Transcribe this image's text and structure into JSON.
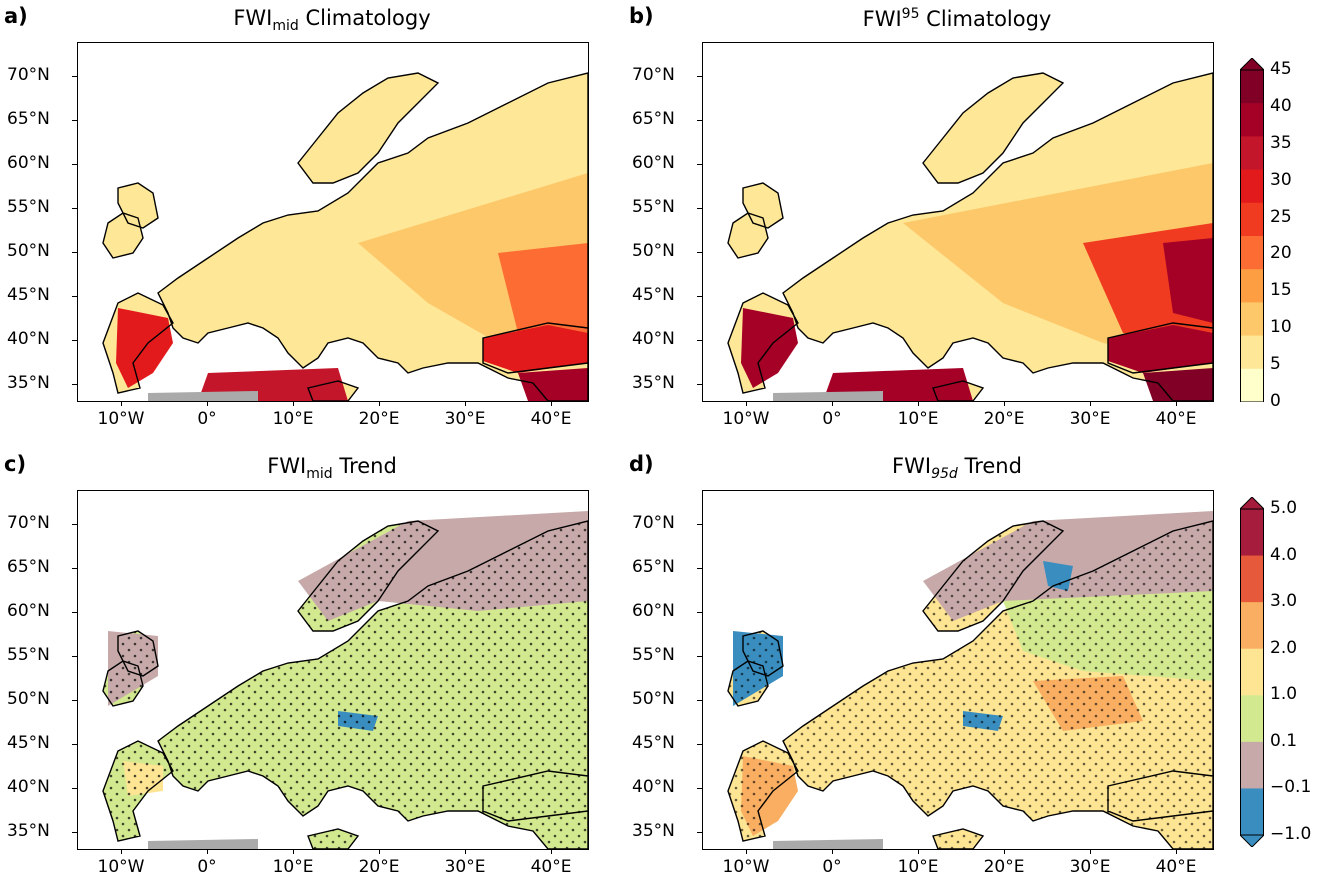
{
  "panels": [
    {
      "letter": "a)",
      "title_main": "FWI",
      "title_sub": "mid",
      "title_sup": "",
      "title_rest": " Climatology"
    },
    {
      "letter": "b)",
      "title_main": "FWI",
      "title_sub": "",
      "title_sup": "95",
      "title_rest": " Climatology"
    },
    {
      "letter": "c)",
      "title_main": "FWI",
      "title_sub": "mid",
      "title_sup": "",
      "title_rest": " Trend"
    },
    {
      "letter": "d)",
      "title_main": "FWI",
      "title_sub": "95d",
      "title_sup": "",
      "title_rest": " Trend"
    }
  ],
  "axes": {
    "lat_labels": [
      "70°N",
      "65°N",
      "60°N",
      "55°N",
      "50°N",
      "45°N",
      "40°N",
      "35°N"
    ],
    "lon_labels": [
      "10°W",
      "0°",
      "10°E",
      "20°E",
      "30°E",
      "40°E"
    ]
  },
  "colorbars": {
    "climatology": {
      "labels": [
        "45",
        "40",
        "35",
        "30",
        "25",
        "20",
        "15",
        "10",
        "5",
        "0"
      ],
      "colors": [
        "#800026",
        "#a50026",
        "#c4162a",
        "#e31a1c",
        "#f03b20",
        "#fc6c33",
        "#fd9e43",
        "#fdc86a",
        "#fee797",
        "#ffffcc"
      ]
    },
    "trend": {
      "labels": [
        "5.0",
        "4.0",
        "3.0",
        "2.0",
        "1.0",
        "0.1",
        "−0.1",
        "−1.0"
      ],
      "colors": [
        "#a51c3c",
        "#e7593b",
        "#f9ae62",
        "#fee593",
        "#d2e98f",
        "#c7a9a9",
        "#3a8ebf"
      ]
    }
  },
  "chart_data": [
    {
      "type": "heatmap",
      "panel": "a",
      "title": "FWImid Climatology",
      "x_range": [
        "10°W",
        "45°E"
      ],
      "y_range": [
        "33°N",
        "74°N"
      ],
      "colorbar": "climatology"
    },
    {
      "type": "heatmap",
      "panel": "b",
      "title": "FWI95 Climatology",
      "x_range": [
        "10°W",
        "45°E"
      ],
      "y_range": [
        "33°N",
        "74°N"
      ],
      "colorbar": "climatology"
    },
    {
      "type": "heatmap",
      "panel": "c",
      "title": "FWImid Trend",
      "x_range": [
        "10°W",
        "45°E"
      ],
      "y_range": [
        "33°N",
        "74°N"
      ],
      "colorbar": "trend",
      "stippling": true
    },
    {
      "type": "heatmap",
      "panel": "d",
      "title": "FWI95d Trend",
      "x_range": [
        "10°W",
        "45°E"
      ],
      "y_range": [
        "33°N",
        "74°N"
      ],
      "colorbar": "trend",
      "stippling": true
    }
  ]
}
